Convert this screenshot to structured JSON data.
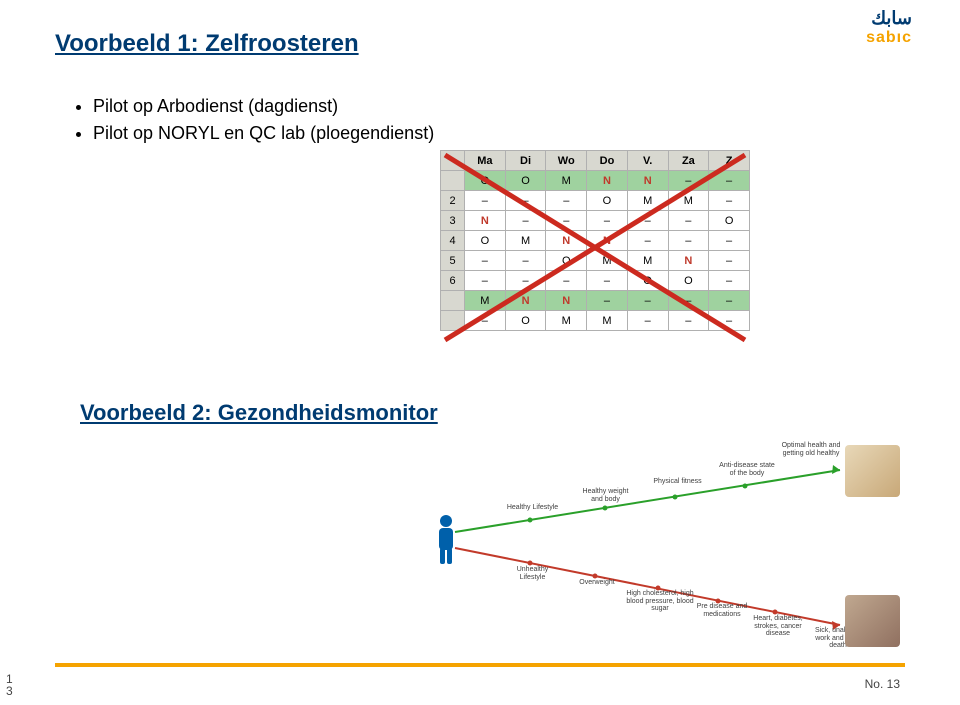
{
  "logo": {
    "brand_top": "سابك",
    "brand_bottom": "sabıc"
  },
  "heading1": "Voorbeeld 1: Zelfroosteren",
  "heading2": "Voorbeeld 2: Gezondheidsmonitor",
  "bullets": [
    "Pilot op Arbodienst (dagdienst)",
    "Pilot op NORYL en QC lab (ploegendienst)"
  ],
  "schedule": {
    "headers": [
      "",
      "Ma",
      "Di",
      "Wo",
      "Do",
      "V.",
      "Za",
      "Z"
    ],
    "rows": [
      {
        "idx": "",
        "cells": [
          "O",
          "O",
          "M",
          "N",
          "N",
          "–",
          "–"
        ],
        "green": true
      },
      {
        "idx": "2",
        "cells": [
          "–",
          "–",
          "–",
          "O",
          "M",
          "M",
          "–"
        ],
        "green": false
      },
      {
        "idx": "3",
        "cells": [
          "N",
          "–",
          "–",
          "–",
          "–",
          "–",
          "O"
        ],
        "green": false
      },
      {
        "idx": "4",
        "cells": [
          "O",
          "M",
          "N",
          "N",
          "–",
          "–",
          "–"
        ],
        "green": false
      },
      {
        "idx": "5",
        "cells": [
          "–",
          "–",
          "O",
          "M",
          "M",
          "N",
          "–"
        ],
        "green": false
      },
      {
        "idx": "6",
        "cells": [
          "–",
          "–",
          "–",
          "–",
          "O",
          "O",
          "–"
        ],
        "green": false
      },
      {
        "idx": "",
        "cells": [
          "M",
          "N",
          "N",
          "–",
          "–",
          "–",
          "–"
        ],
        "green": true
      },
      {
        "idx": "",
        "cells": [
          "–",
          "O",
          "M",
          "M",
          "–",
          "–",
          "–"
        ],
        "green": false
      }
    ],
    "cross_color": "#cc2a1f"
  },
  "diagram": {
    "colors": {
      "good_line": "#2aa02a",
      "bad_line": "#c23a2a",
      "person": "#0060aa",
      "label_text": "#404040"
    },
    "labels_good": [
      "Healthy Lifestyle",
      "Healthy weight and body",
      "Physical fitness",
      "Anti-disease state of the body",
      "Optimal health and getting old healthy"
    ],
    "labels_bad": [
      "Unhealthy Lifestyle",
      "Overweight",
      "High cholesterol, high blood pressure, blood sugar",
      "Pre disease and medications",
      "Heart, diabetes, strokes, cancer disease",
      "Sick, unable to work and early death"
    ]
  },
  "footer": {
    "page_no_label": "No. 13",
    "side_no": "1\n3",
    "accent_color": "#f5a300"
  },
  "colors": {
    "heading": "#003b71",
    "brand_orange": "#f5a300",
    "brand_blue": "#003b71"
  }
}
